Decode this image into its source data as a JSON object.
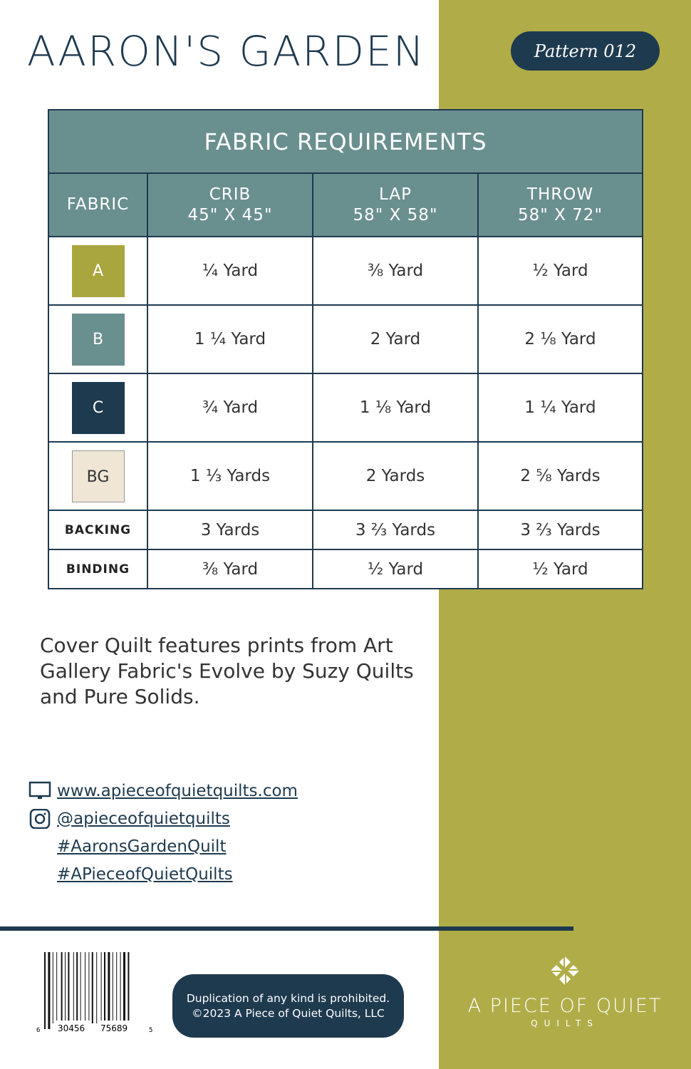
{
  "title": "AARON'S GARDEN",
  "pattern": "Pattern 012",
  "table": {
    "heading": "FABRIC REQUIREMENTS",
    "columns": [
      {
        "name": "FABRIC",
        "size": ""
      },
      {
        "name": "CRIB",
        "size": "45\" X 45\""
      },
      {
        "name": "LAP",
        "size": "58\" X 58\""
      },
      {
        "name": "THROW",
        "size": "58\" X 72\""
      }
    ],
    "rows": [
      {
        "fabric": "A",
        "swatch": "#aaa63f",
        "values": [
          "¼ Yard",
          "⅜ Yard",
          "½ Yard"
        ]
      },
      {
        "fabric": "B",
        "swatch": "#6a8f8f",
        "values": [
          "1 ¼ Yard",
          "2 Yard",
          "2 ⅛ Yard"
        ]
      },
      {
        "fabric": "C",
        "swatch": "#1e3a4f",
        "values": [
          "¾ Yard",
          "1 ⅛ Yard",
          "1 ¼ Yard"
        ]
      },
      {
        "fabric": "BG",
        "swatch": "#efe6d6",
        "values": [
          "1 ⅓ Yards",
          "2 Yards",
          "2 ⅝ Yards"
        ]
      },
      {
        "fabric": "BACKING",
        "values": [
          "3 Yards",
          "3 ⅔ Yards",
          "3 ⅔ Yards"
        ]
      },
      {
        "fabric": "BINDING",
        "values": [
          "⅜ Yard",
          "½ Yard",
          "½ Yard"
        ]
      }
    ]
  },
  "description": "Cover Quilt features prints from Art Gallery Fabric's Evolve by Suzy Quilts and Pure Solids.",
  "links": {
    "website": "www.apieceofquietquilts.com",
    "instagram": "@apieceofquietquilts",
    "hashtag1": "#AaronsGardenQuilt",
    "hashtag2": "#APieceofQuietQuilts"
  },
  "barcode": "6 30456 75689 5",
  "legal": {
    "line1": "Duplication of any kind is prohibited.",
    "line2": "©2023 A Piece of Quiet Quilts, LLC"
  },
  "brand": {
    "name": "A PIECE OF QUIET",
    "sub": "QUILTS"
  },
  "colors": {
    "olive": "#b0ad48",
    "navy": "#1e3a4f",
    "teal": "#6a8f8f"
  }
}
